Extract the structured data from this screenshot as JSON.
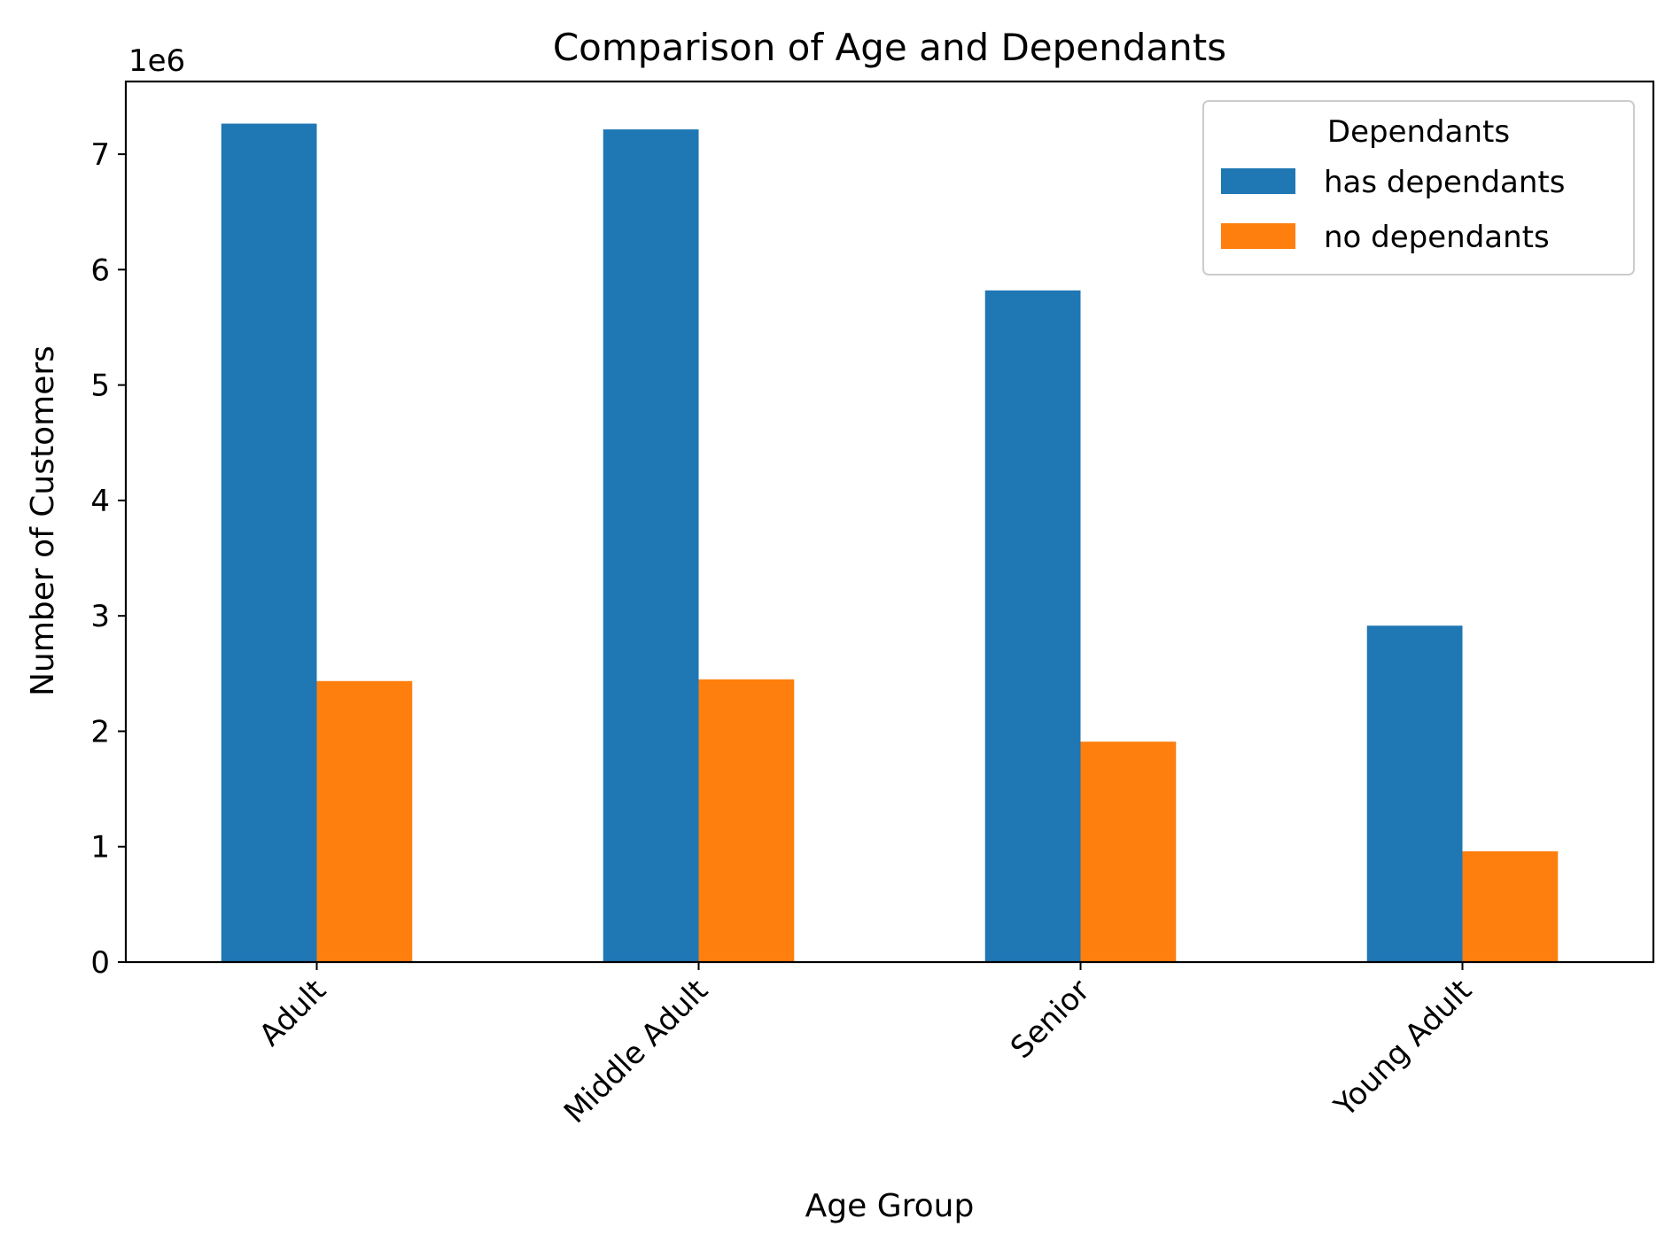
{
  "chart_data": {
    "type": "bar",
    "title": "Comparison of Age and Dependants",
    "xlabel": "Age Group",
    "ylabel": "Number of Customers",
    "y_scale_label": "1e6",
    "categories": [
      "Adult",
      "Middle Adult",
      "Senior",
      "Young Adult"
    ],
    "series": [
      {
        "name": "has dependants",
        "color": "#1f77b4",
        "values": [
          7265000,
          7215000,
          5820000,
          2915000
        ]
      },
      {
        "name": "no dependants",
        "color": "#ff7f0e",
        "values": [
          2435000,
          2450000,
          1910000,
          960000
        ]
      }
    ],
    "yticks": [
      "0",
      "1",
      "2",
      "3",
      "4",
      "5",
      "6",
      "7"
    ],
    "ylim": [
      0,
      7630000
    ],
    "legend": {
      "title": "Dependants",
      "position": "top-right"
    },
    "grid": false
  }
}
